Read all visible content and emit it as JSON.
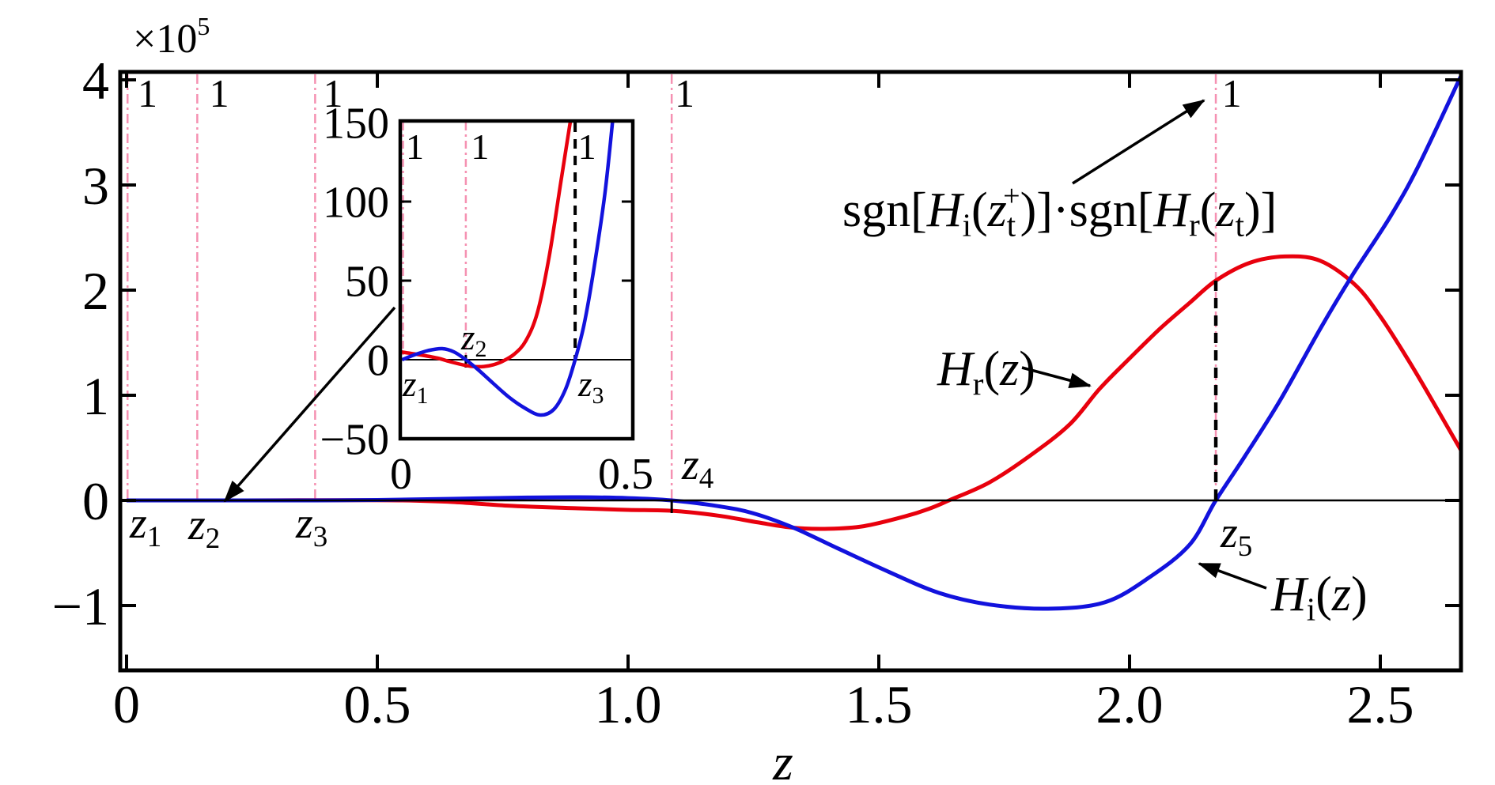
{
  "figure": {
    "background": "#ffffff",
    "axis_color": "#000000",
    "offset_label_parts": [
      [
        "×10",
        "n"
      ],
      [
        "5",
        "sup"
      ]
    ],
    "xlabel_parts": [
      [
        "z",
        "i"
      ]
    ],
    "annotation_sgn_parts": [
      [
        "sgn[",
        "n"
      ],
      [
        "H",
        "i"
      ],
      [
        "i",
        "subn"
      ],
      [
        "(",
        "n"
      ],
      [
        "z",
        "i"
      ],
      [
        "t",
        "subn"
      ],
      [
        "+",
        "sup",
        -16
      ],
      [
        ")]",
        "n"
      ],
      [
        "·",
        "n"
      ],
      [
        "sgn[",
        "n"
      ],
      [
        "H",
        "i"
      ],
      [
        "r",
        "subn"
      ],
      [
        "(",
        "n"
      ],
      [
        "z",
        "i"
      ],
      [
        ")]",
        "dummy-unused"
      ]
    ],
    "hr_label_parts": [
      [
        "H",
        "i"
      ],
      [
        "r",
        "subn"
      ],
      [
        "(",
        "n"
      ],
      [
        "z",
        "i"
      ],
      [
        ")",
        "n"
      ]
    ],
    "hi_label_parts": [
      [
        "H",
        "i"
      ],
      [
        "i",
        "subn"
      ],
      [
        "(",
        "n"
      ],
      [
        "z",
        "i"
      ],
      [
        ")",
        "n"
      ]
    ],
    "sign_label": "1"
  },
  "chart_data": {
    "type": "line",
    "title": "",
    "xlabel": "z",
    "ylabel": "",
    "y_axis_multiplier": "×10^5",
    "grid": false,
    "legend": "inline-annotations",
    "colors": {
      "H_r": "#e8000d",
      "H_i": "#1212dd",
      "root_line_pink": "#f591b2",
      "marker_dash_black": "#000000"
    },
    "annotation_text": "sgn[H_i(z_t^+)] . sgn[H_r(z_t)]",
    "sign_value_between_roots": "1",
    "roots": [
      {
        "name": "z1",
        "z": 0.002
      },
      {
        "name": "z2",
        "z": 0.141
      },
      {
        "name": "z3",
        "z": 0.376
      },
      {
        "name": "z4",
        "z": 1.087
      },
      {
        "name": "z5",
        "z": 2.172
      }
    ],
    "sign_label_z_positions_main": [
      0.022,
      0.165,
      0.392,
      1.093,
      2.184
    ],
    "sign_label_z_positions_inset": [
      0.012,
      0.152,
      0.382
    ],
    "main": {
      "xlim": [
        0,
        2.664
      ],
      "ylim": [
        -1.617,
        4.075
      ],
      "xticks": [
        0,
        0.5,
        1.0,
        1.5,
        2.0,
        2.5
      ],
      "xtick_labels": [
        "0",
        "0.5",
        "1.0",
        "1.5",
        "2.0",
        "2.5"
      ],
      "yticks": [
        -1,
        0,
        1,
        2,
        3,
        4
      ],
      "ytick_labels": [
        "−1",
        "0",
        "1",
        "2",
        "3",
        "4"
      ],
      "zero_line": true,
      "series": [
        {
          "name": "H_r(z)",
          "color": "#e8000d",
          "x": [
            0,
            0.1,
            0.2,
            0.3,
            0.37,
            0.45,
            0.55,
            0.65,
            0.76,
            0.9,
            1.0,
            1.09,
            1.18,
            1.26,
            1.33,
            1.4,
            1.47,
            1.55,
            1.6,
            1.64,
            1.72,
            1.8,
            1.88,
            1.94,
            2.0,
            2.06,
            2.12,
            2.172,
            2.24,
            2.31,
            2.38,
            2.45,
            2.5,
            2.55,
            2.6,
            2.664
          ],
          "y": [
            0.0001,
            0,
            0,
            0.001,
            0.0015,
            0.002,
            0,
            -0.015,
            -0.05,
            -0.075,
            -0.09,
            -0.1,
            -0.145,
            -0.21,
            -0.26,
            -0.27,
            -0.245,
            -0.155,
            -0.08,
            0,
            0.17,
            0.42,
            0.72,
            1.06,
            1.35,
            1.63,
            1.88,
            2.09,
            2.26,
            2.32,
            2.28,
            2.05,
            1.75,
            1.38,
            0.98,
            0.45
          ]
        },
        {
          "name": "H_i(z)",
          "color": "#1212dd",
          "x": [
            0,
            0.07,
            0.141,
            0.25,
            0.376,
            0.5,
            0.65,
            0.8,
            0.9,
            1.0,
            1.087,
            1.18,
            1.248,
            1.33,
            1.42,
            1.52,
            1.62,
            1.72,
            1.837,
            1.95,
            2.04,
            2.12,
            2.172,
            2.23,
            2.3,
            2.38,
            2.444,
            2.52,
            2.577,
            2.664
          ],
          "y": [
            0,
            0.0001,
            0,
            -0.0003,
            0,
            0.004,
            0.015,
            0.027,
            0.03,
            0.022,
            0,
            -0.055,
            -0.12,
            -0.26,
            -0.46,
            -0.68,
            -0.88,
            -0.99,
            -1.03,
            -0.97,
            -0.73,
            -0.42,
            0,
            0.42,
            0.95,
            1.63,
            2.14,
            2.7,
            3.19,
            4.07
          ]
        }
      ]
    },
    "inset": {
      "xlim": [
        0,
        0.5
      ],
      "ylim": [
        -50,
        151
      ],
      "xticks": [
        0,
        0.5
      ],
      "xtick_labels": [
        "0",
        "0.5"
      ],
      "yticks": [
        -50,
        0,
        50,
        100,
        150
      ],
      "ytick_labels": [
        "−50",
        "0",
        "50",
        "100",
        "150"
      ],
      "zero_line": true,
      "roots_marked": [
        "z1",
        "z2",
        "z3"
      ],
      "series": [
        {
          "name": "H_r(z)",
          "color": "#e8000d",
          "x": [
            0,
            0.04,
            0.08,
            0.11,
            0.14,
            0.16,
            0.18,
            0.2,
            0.22,
            0.245,
            0.27,
            0.295,
            0.32,
            0.345,
            0.368
          ],
          "y": [
            5,
            3.2,
            1.0,
            -1.5,
            -3.6,
            -4.4,
            -4.3,
            -3.2,
            -1.0,
            3.5,
            12,
            30,
            65,
            112,
            155
          ]
        },
        {
          "name": "H_i(z)",
          "color": "#1212dd",
          "x": [
            0.004,
            0.03,
            0.06,
            0.09,
            0.115,
            0.141,
            0.17,
            0.2,
            0.235,
            0.27,
            0.301,
            0.33,
            0.355,
            0.376,
            0.395,
            0.415,
            0.44,
            0.458
          ],
          "y": [
            0,
            3,
            5.8,
            7,
            5,
            0,
            -7,
            -15,
            -24,
            -31,
            -35,
            -31.5,
            -19,
            0,
            22,
            55,
            105,
            155
          ]
        }
      ]
    }
  }
}
